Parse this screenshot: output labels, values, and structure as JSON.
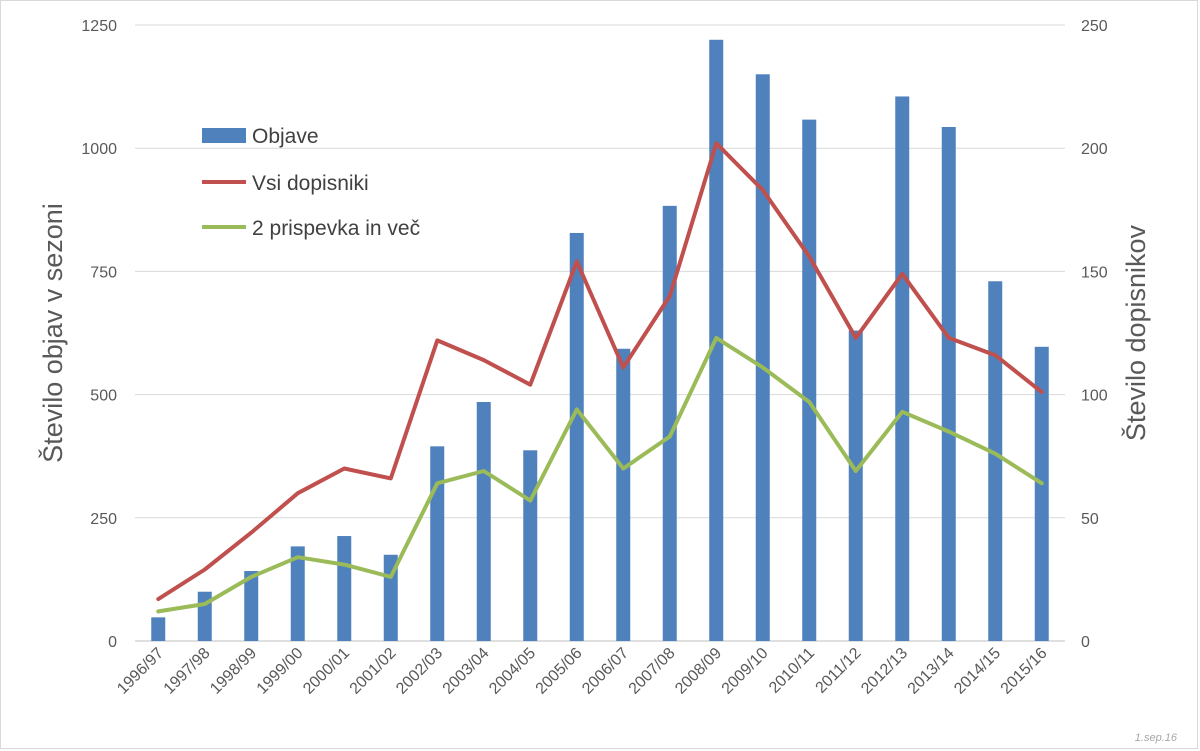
{
  "chart_data": {
    "type": "bar",
    "categories": [
      "1996/97",
      "1997/98",
      "1998/99",
      "1999/00",
      "2000/01",
      "2001/02",
      "2002/03",
      "2003/04",
      "2004/05",
      "2005/06",
      "2006/07",
      "2007/08",
      "2008/09",
      "2009/10",
      "2010/11",
      "2011/12",
      "2012/13",
      "2013/14",
      "2014/15",
      "2015/16"
    ],
    "series": [
      {
        "name": "Objave",
        "kind": "bar",
        "axis": "left",
        "color": "#4f81bd",
        "values": [
          48,
          100,
          142,
          192,
          213,
          175,
          395,
          485,
          387,
          828,
          593,
          883,
          1220,
          1150,
          1058,
          630,
          1105,
          1043,
          730,
          597
        ]
      },
      {
        "name": "Vsi dopisniki",
        "kind": "line",
        "axis": "right",
        "color": "#c0504d",
        "values": [
          17,
          29,
          44,
          60,
          70,
          66,
          122,
          114,
          104,
          154,
          111,
          140,
          202,
          183,
          156,
          123,
          149,
          123,
          116,
          101
        ]
      },
      {
        "name": "2 prispevka in več",
        "kind": "line",
        "axis": "right",
        "color": "#9bbb59",
        "values": [
          12,
          15,
          26,
          34,
          31,
          26,
          64,
          69,
          57,
          94,
          70,
          83,
          123,
          111,
          97,
          69,
          93,
          85,
          76,
          64
        ]
      }
    ],
    "ylabel": "Število objav v sezoni",
    "y2label": "Število dopisnikov",
    "ylim": [
      0,
      1250
    ],
    "y2lim": [
      0,
      250
    ],
    "yticks": [
      "0",
      "250",
      "500",
      "750",
      "1000",
      "1250"
    ],
    "y2ticks": [
      "0",
      "50",
      "100",
      "150",
      "200",
      "250"
    ],
    "grid": true,
    "legend": "upper-left",
    "footnote": "1.sep.16"
  }
}
